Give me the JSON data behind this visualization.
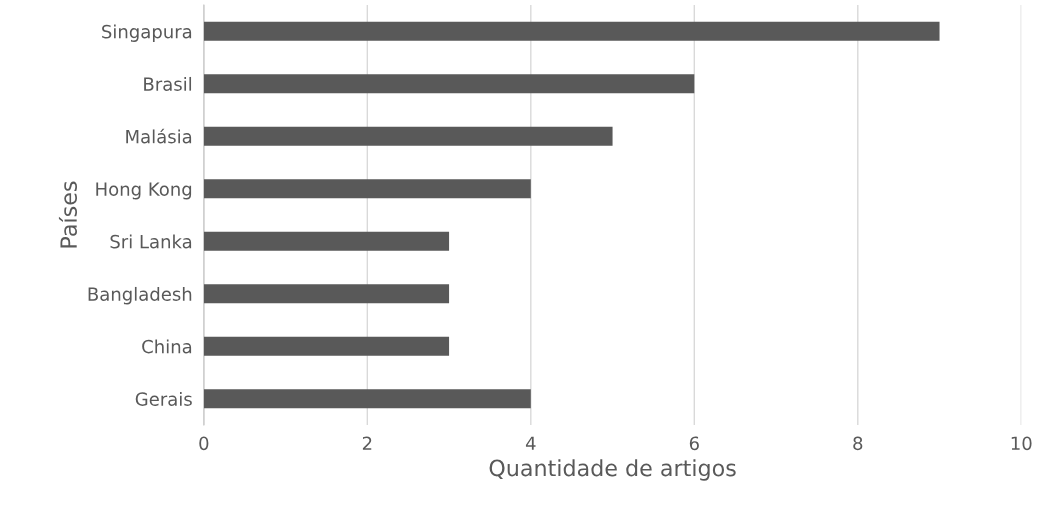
{
  "chart_data": {
    "type": "bar",
    "orientation": "horizontal",
    "xlabel": "Quantidade de artigos",
    "ylabel": "Países",
    "categories": [
      "Singapura",
      "Brasil",
      "Malásia",
      "Hong Kong",
      "Sri Lanka",
      "Bangladesh",
      "China",
      "Gerais"
    ],
    "values": [
      9,
      6,
      5,
      4,
      3,
      3,
      3,
      4
    ],
    "color": "#595959",
    "xlim": [
      0,
      10
    ],
    "xticks": [
      0,
      2,
      4,
      6,
      8,
      10
    ],
    "grid": "x"
  }
}
